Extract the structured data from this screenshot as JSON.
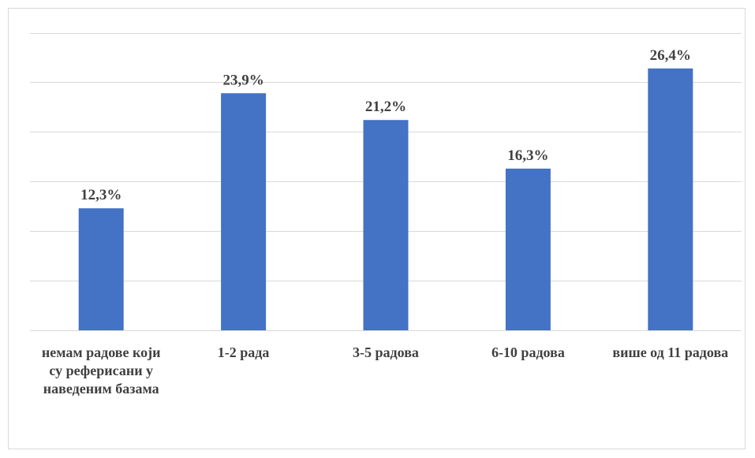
{
  "chart_data": {
    "type": "bar",
    "categories": [
      "немам радове који су реферисани у наведеним базама",
      "1-2 рада",
      "3-5 радова",
      "6-10 радова",
      "више од 11 радова"
    ],
    "values": [
      12.3,
      23.9,
      21.2,
      16.3,
      26.4
    ],
    "value_labels": [
      "12,3%",
      "23,9%",
      "21,2%",
      "16,3%",
      "26,4%"
    ],
    "ylim": [
      0,
      30
    ],
    "grid": true,
    "colors": {
      "bar": "#4472c4",
      "grid": "#d9d9d9",
      "text": "#404040"
    }
  }
}
